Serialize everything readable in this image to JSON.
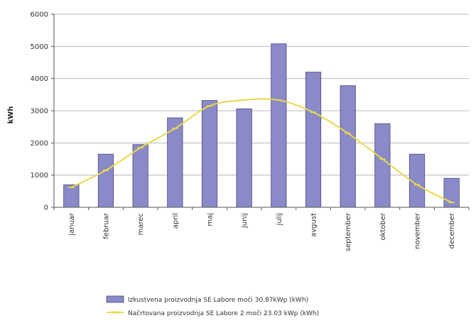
{
  "chart_data": {
    "type": "bar",
    "ylabel": "kWh",
    "ylim": [
      0,
      6000
    ],
    "yticks": [
      "0",
      "1000",
      "2000",
      "3000",
      "4000",
      "5000",
      "6000"
    ],
    "grid": true,
    "legend_position": "bottom",
    "categories": [
      "januar",
      "februar",
      "marec",
      "april",
      "maj",
      "junij",
      "julij",
      "avgust",
      "september",
      "oktober",
      "november",
      "december"
    ],
    "series": [
      {
        "name": "Izkustvena proizvodnja SE Labore moči 30.87kWp (kWh)",
        "kind": "bar",
        "color": "#8a8ac8",
        "values": [
          700,
          1650,
          1950,
          2780,
          3320,
          3060,
          5080,
          4200,
          3780,
          2600,
          1650,
          900
        ]
      },
      {
        "name": "Načrtovana proizvodnja SE Labore 2 moči 23.03 kWp (kWh)",
        "kind": "line",
        "color": "#e8d84a",
        "values": [
          620,
          1150,
          1850,
          2450,
          3150,
          3330,
          3330,
          2950,
          2300,
          1500,
          700,
          150
        ]
      }
    ]
  }
}
